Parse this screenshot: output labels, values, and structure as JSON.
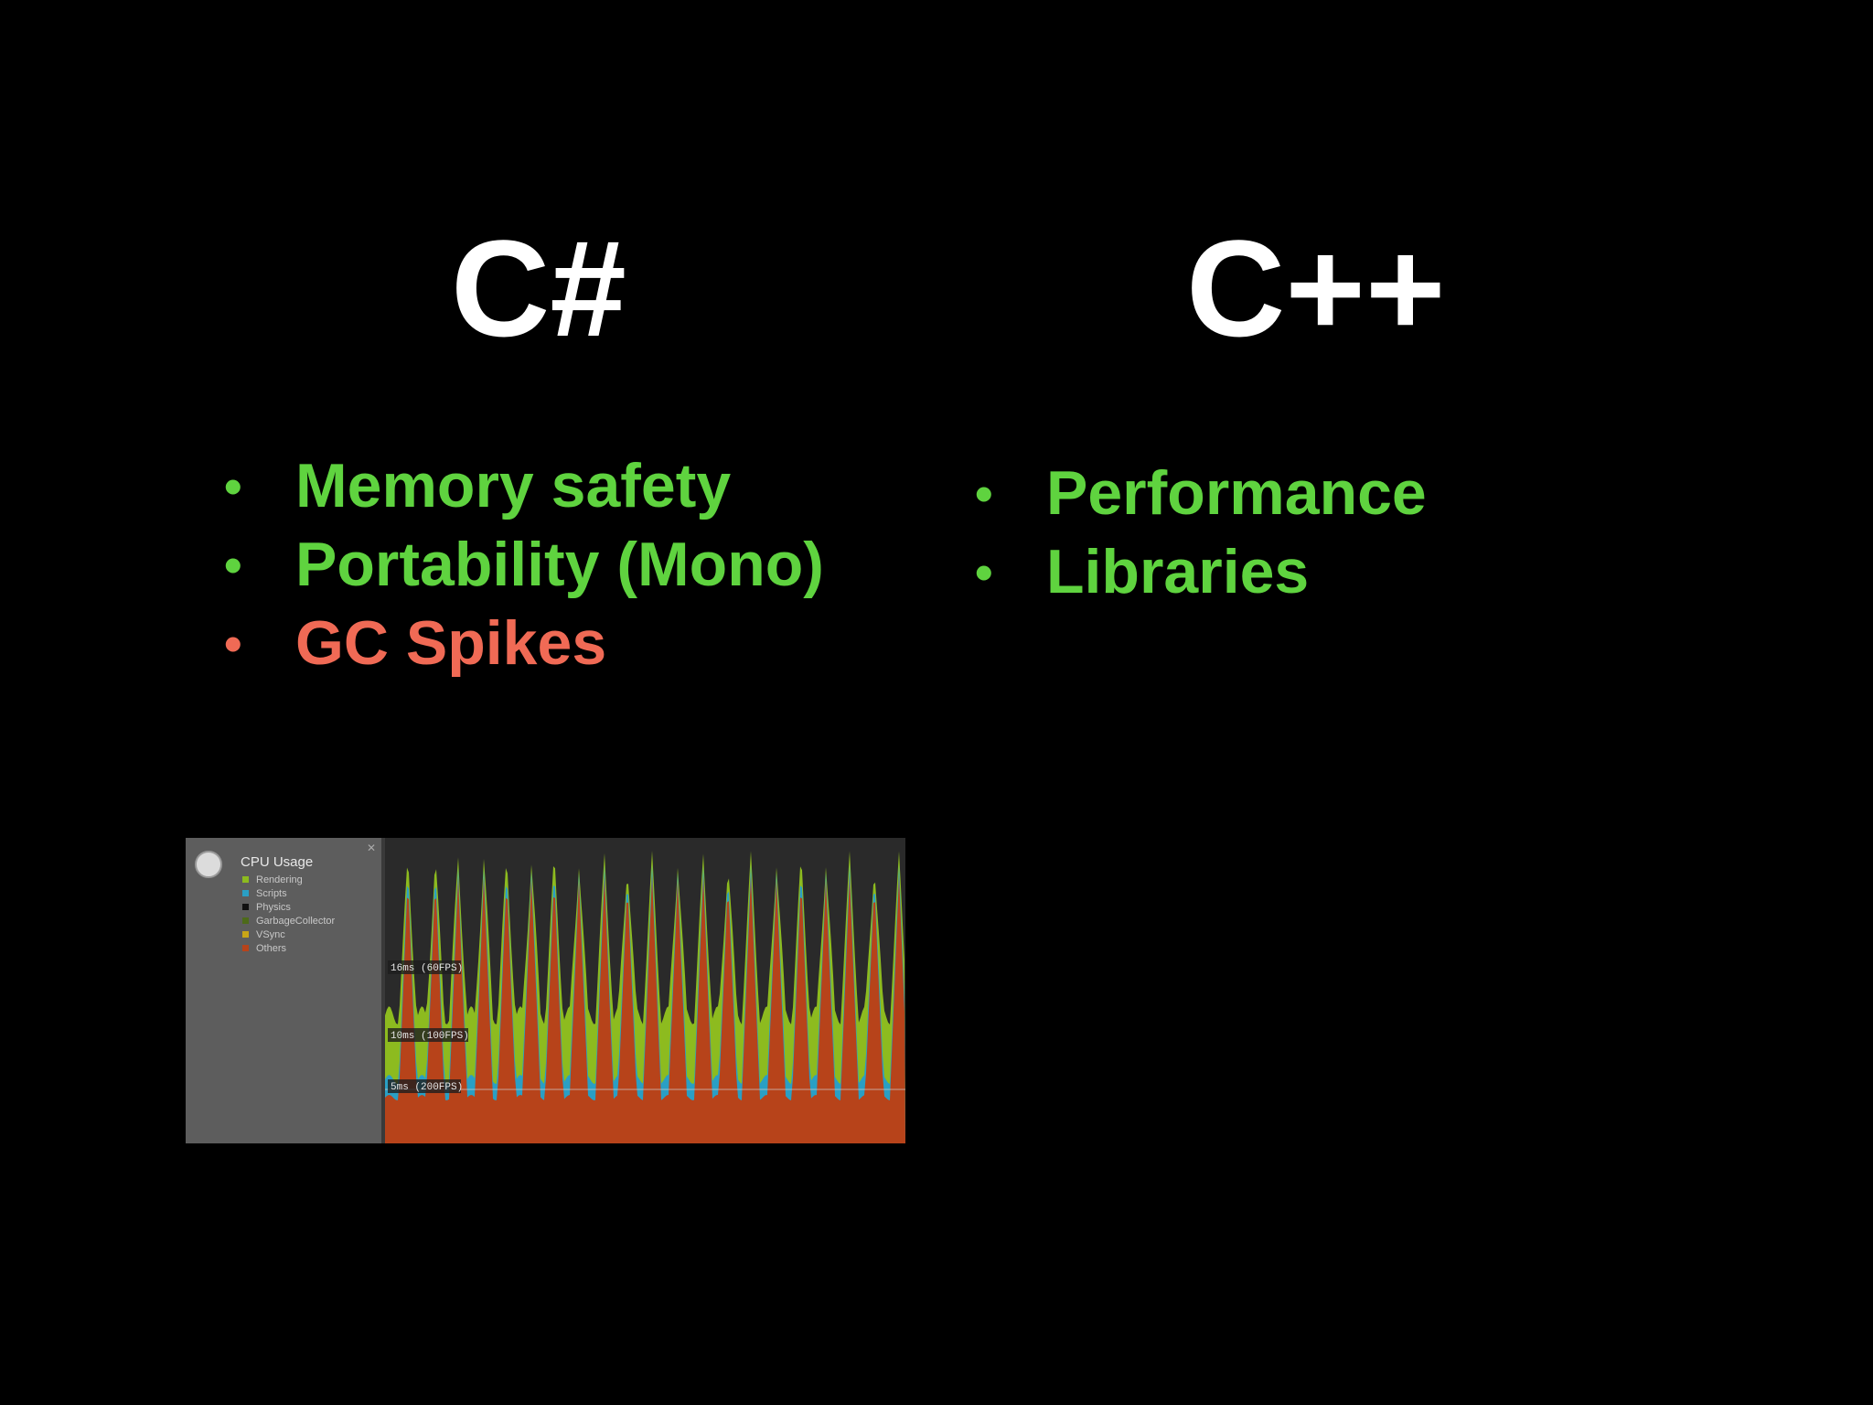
{
  "left": {
    "title": "C#",
    "bullets": [
      {
        "text": "Memory safety",
        "color": "#5fd33f"
      },
      {
        "text": "Portability (Mono)",
        "color": "#5fd33f"
      },
      {
        "text": "GC Spikes",
        "color": "#f06a55"
      }
    ]
  },
  "right": {
    "title": "C++",
    "bullets": [
      {
        "text": "Performance",
        "color": "#5fd33f"
      },
      {
        "text": "Libraries",
        "color": "#5fd33f"
      }
    ]
  },
  "profiler": {
    "title": "CPU Usage",
    "legend": [
      {
        "label": "Rendering",
        "color": "#8dbb1f"
      },
      {
        "label": "Scripts",
        "color": "#2a9fc4"
      },
      {
        "label": "Physics",
        "color": "#111111"
      },
      {
        "label": "GarbageCollector",
        "color": "#4d6a1a"
      },
      {
        "label": "VSync",
        "color": "#c9a616"
      },
      {
        "label": "Others",
        "color": "#b7431a"
      }
    ],
    "reference_lines": [
      "16ms (60FPS)",
      "10ms (100FPS)",
      "5ms (200FPS)"
    ]
  },
  "colors": {
    "background": "#000000",
    "title": "#ffffff",
    "positive": "#5fd33f",
    "negative": "#f06a55"
  }
}
